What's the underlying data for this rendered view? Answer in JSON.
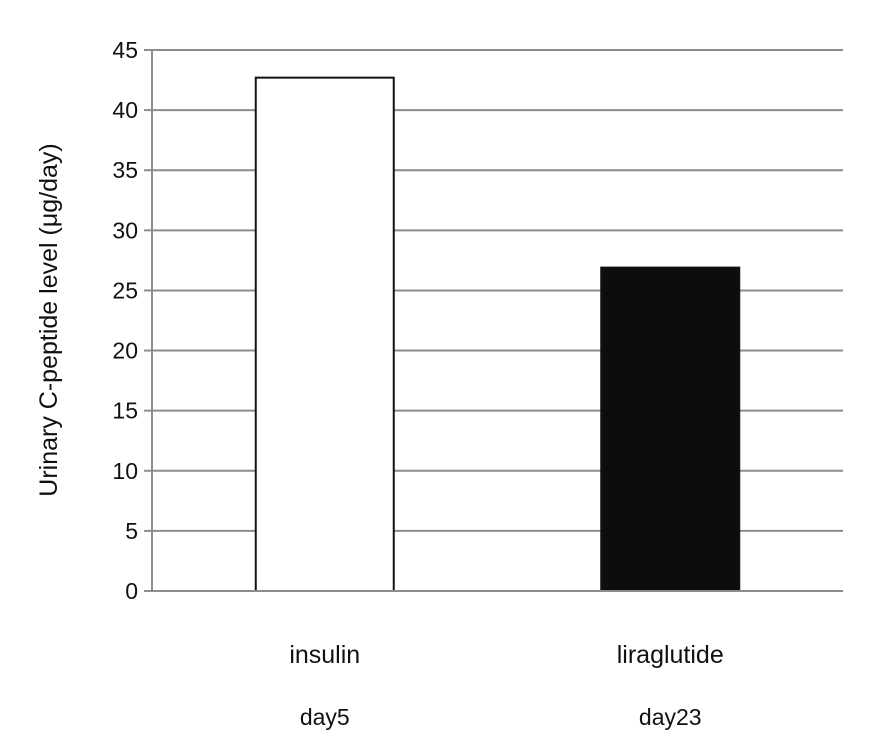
{
  "chart_data": {
    "type": "bar",
    "title": "",
    "xlabel": "",
    "ylabel": "Urinary C-peptide level (μg/day)",
    "ylim": [
      0,
      45
    ],
    "yticks": [
      "0",
      "5",
      "10",
      "15",
      "20",
      "25",
      "30",
      "35",
      "40",
      "45"
    ],
    "grid": true,
    "categories": [
      "insulin",
      "liraglutide"
    ],
    "sublabels": [
      "day5",
      "day23"
    ],
    "values": [
      42.7,
      26.9
    ],
    "bar_colors": [
      "#ffffff",
      "#0d0d0d"
    ],
    "bar_edge_color": "#111111",
    "grid_color": "#8c8c8c",
    "axis_color": "#8c8c8c"
  }
}
